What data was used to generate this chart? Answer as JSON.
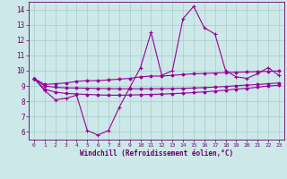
{
  "xlabel": "Windchill (Refroidissement éolien,°C)",
  "x_values": [
    0,
    1,
    2,
    3,
    4,
    5,
    6,
    7,
    8,
    9,
    10,
    11,
    12,
    13,
    14,
    15,
    16,
    17,
    18,
    19,
    20,
    21,
    22,
    23
  ],
  "line_main": [
    9.5,
    8.7,
    8.1,
    8.2,
    8.4,
    6.1,
    5.8,
    6.1,
    7.6,
    8.9,
    10.2,
    12.5,
    9.7,
    10.0,
    13.4,
    14.2,
    12.8,
    12.4,
    10.0,
    9.6,
    9.5,
    9.8,
    10.2,
    9.7
  ],
  "line_upper": [
    9.5,
    9.1,
    9.15,
    9.2,
    9.3,
    9.35,
    9.35,
    9.4,
    9.45,
    9.5,
    9.6,
    9.65,
    9.65,
    9.7,
    9.75,
    9.8,
    9.82,
    9.85,
    9.88,
    9.9,
    9.92,
    9.94,
    9.96,
    9.98
  ],
  "line_mid1": [
    9.5,
    9.0,
    8.92,
    8.88,
    8.87,
    8.86,
    8.84,
    8.83,
    8.82,
    8.82,
    8.82,
    8.82,
    8.83,
    8.84,
    8.85,
    8.87,
    8.9,
    8.93,
    8.97,
    9.02,
    9.06,
    9.1,
    9.15,
    9.2
  ],
  "line_mid2": [
    9.5,
    8.8,
    8.6,
    8.52,
    8.48,
    8.45,
    8.42,
    8.4,
    8.4,
    8.41,
    8.43,
    8.45,
    8.47,
    8.5,
    8.53,
    8.57,
    8.62,
    8.67,
    8.73,
    8.8,
    8.85,
    8.92,
    9.0,
    9.05
  ],
  "line_color": "#990099",
  "bg_color": "#cce8e8",
  "grid_color": "#aacccc",
  "text_color": "#660066",
  "ylim": [
    5.5,
    14.5
  ],
  "yticks": [
    6,
    7,
    8,
    9,
    10,
    11,
    12,
    13,
    14
  ],
  "xlim": [
    -0.5,
    23.5
  ],
  "xticklabels": [
    "0",
    "1",
    "2",
    "3",
    "4",
    "5",
    "6",
    "7",
    "8",
    "9",
    "10",
    "11",
    "12",
    "13",
    "14",
    "15",
    "16",
    "17",
    "18",
    "19",
    "20",
    "21",
    "22",
    "23"
  ]
}
